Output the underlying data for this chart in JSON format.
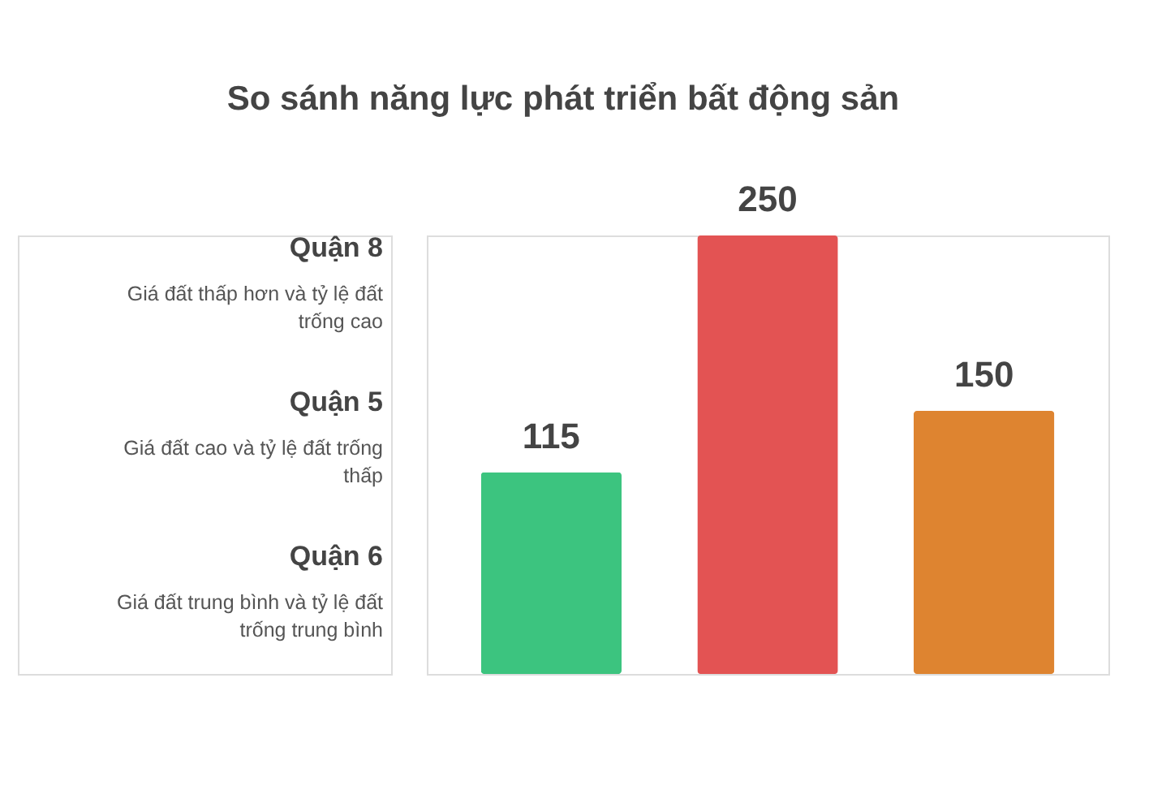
{
  "chart_data": {
    "type": "bar",
    "title": "So sánh năng lực phát triển bất động sản",
    "categories": [
      null,
      null,
      null
    ],
    "values": [
      115,
      250,
      150
    ],
    "colors": [
      "#3cc47f",
      "#e35353",
      "#de8430"
    ],
    "data_labels": true,
    "annotations": [
      "Quận 8",
      "Giá đất thấp hơn và tỷ lệ đất trống cao",
      "Quận 5",
      "Giá đất cao và tỷ lệ đất trống thấp",
      "Quận 6",
      "Giá đất trung bình và tỷ lệ đất trống trung bình"
    ]
  }
}
